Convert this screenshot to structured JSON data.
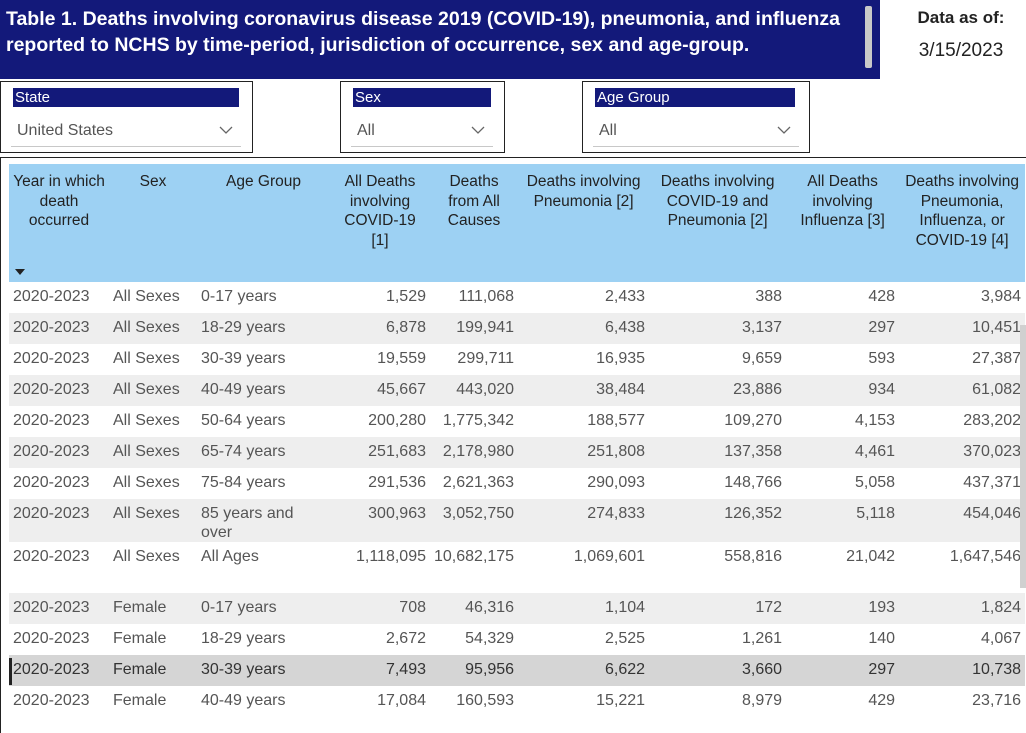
{
  "title": "Table 1. Deaths involving coronavirus disease 2019 (COVID-19), pneumonia, and influenza reported to NCHS by time-period, jurisdiction of occurrence, sex and age-group.",
  "data_as_of": {
    "label": "Data as of:",
    "value": "3/15/2023"
  },
  "slicers": {
    "state": {
      "label": "State",
      "value": "United States"
    },
    "sex": {
      "label": "Sex",
      "value": "All"
    },
    "age_group": {
      "label": "Age Group",
      "value": "All"
    }
  },
  "table": {
    "columns": [
      "Year in which death occurred",
      "Sex",
      "Age Group",
      "All Deaths involving COVID-19 [1]",
      "Deaths from All Causes",
      "Deaths involving Pneumonia [2]",
      "Deaths involving COVID-19 and Pneumonia [2]",
      "All Deaths involving Influenza [3]",
      "Deaths involving Pneumonia, Influenza, or COVID-19 [4]"
    ],
    "rows": [
      [
        "2020-2023",
        "All Sexes",
        "0-17 years",
        "1,529",
        "111,068",
        "2,433",
        "388",
        "428",
        "3,984"
      ],
      [
        "2020-2023",
        "All Sexes",
        "18-29 years",
        "6,878",
        "199,941",
        "6,438",
        "3,137",
        "297",
        "10,451"
      ],
      [
        "2020-2023",
        "All Sexes",
        "30-39 years",
        "19,559",
        "299,711",
        "16,935",
        "9,659",
        "593",
        "27,387"
      ],
      [
        "2020-2023",
        "All Sexes",
        "40-49 years",
        "45,667",
        "443,020",
        "38,484",
        "23,886",
        "934",
        "61,082"
      ],
      [
        "2020-2023",
        "All Sexes",
        "50-64 years",
        "200,280",
        "1,775,342",
        "188,577",
        "109,270",
        "4,153",
        "283,202"
      ],
      [
        "2020-2023",
        "All Sexes",
        "65-74 years",
        "251,683",
        "2,178,980",
        "251,808",
        "137,358",
        "4,461",
        "370,023"
      ],
      [
        "2020-2023",
        "All Sexes",
        "75-84 years",
        "291,536",
        "2,621,363",
        "290,093",
        "148,766",
        "5,058",
        "437,371"
      ],
      [
        "2020-2023",
        "All Sexes",
        "85 years and over",
        "300,963",
        "3,052,750",
        "274,833",
        "126,352",
        "5,118",
        "454,046"
      ],
      [
        "2020-2023",
        "All Sexes",
        "All Ages",
        "1,118,095",
        "10,682,175",
        "1,069,601",
        "558,816",
        "21,042",
        "1,647,546"
      ],
      [
        "2020-2023",
        "Female",
        "0-17 years",
        "708",
        "46,316",
        "1,104",
        "172",
        "193",
        "1,824"
      ],
      [
        "2020-2023",
        "Female",
        "18-29 years",
        "2,672",
        "54,329",
        "2,525",
        "1,261",
        "140",
        "4,067"
      ],
      [
        "2020-2023",
        "Female",
        "30-39 years",
        "7,493",
        "95,956",
        "6,622",
        "3,660",
        "297",
        "10,738"
      ],
      [
        "2020-2023",
        "Female",
        "40-49 years",
        "17,084",
        "160,593",
        "15,221",
        "8,979",
        "429",
        "23,716"
      ]
    ],
    "selected_row": 11
  },
  "colors": {
    "title_bg": "#13197a",
    "header_bg": "#9dd1f3",
    "row_alt": "#eeeeee",
    "row_selected": "#d5d5d5"
  }
}
